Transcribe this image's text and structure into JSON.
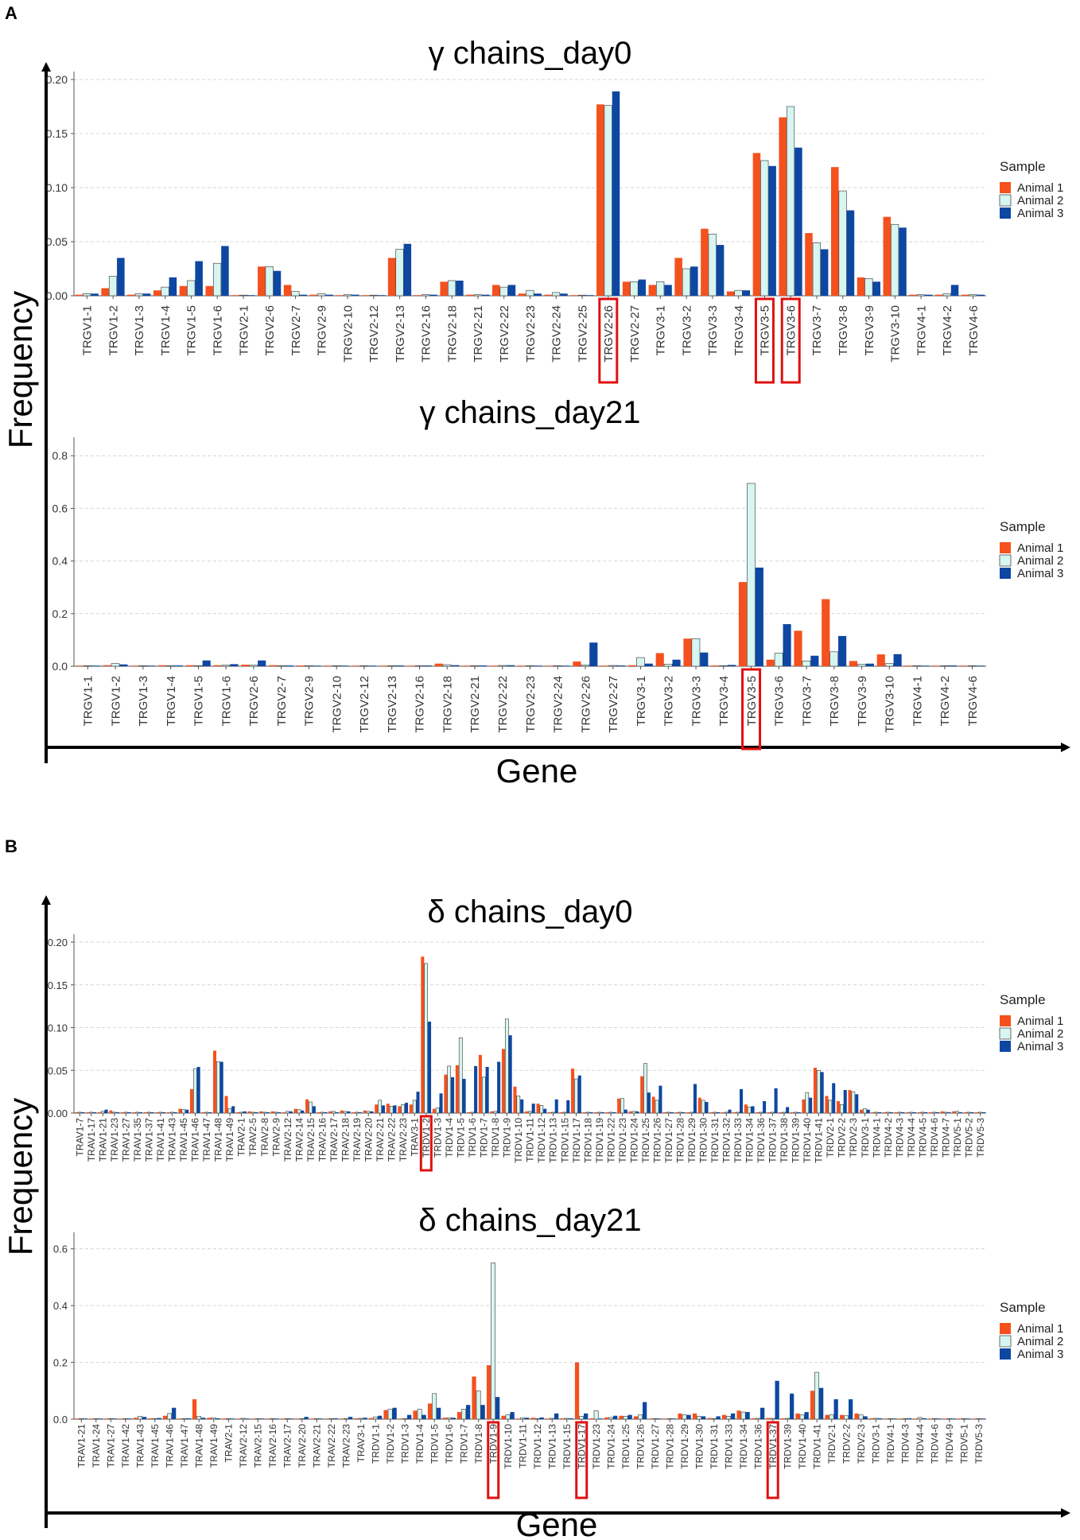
{
  "panels": [
    {
      "letter": "A",
      "xlabel": "Gene",
      "ylabel": "Frequency"
    },
    {
      "letter": "B",
      "xlabel": "Gene",
      "ylabel": "Frequency"
    }
  ],
  "legend": {
    "title": "Sample",
    "items": [
      "Animal 1",
      "Animal 2",
      "Animal 3"
    ]
  },
  "colors": {
    "Animal 1": "#F4511E",
    "Animal 2": "#D7F5F1",
    "Animal 3": "#0D47A1",
    "highlight": "#E01010"
  },
  "chart_data": [
    {
      "type": "bar",
      "title": "γ chains_day0",
      "xlabel": "Gene",
      "ylabel": "Frequency",
      "ylim": [
        0,
        0.2
      ],
      "yticks": [
        "0.00",
        "0.05",
        "0.10",
        "0.15",
        "0.20"
      ],
      "highlighted": [
        "TRGV2-26",
        "TRGV3-5",
        "TRGV3-6"
      ],
      "categories": [
        "TRGV1-1",
        "TRGV1-2",
        "TRGV1-3",
        "TRGV1-4",
        "TRGV1-5",
        "TRGV1-6",
        "TRGV2-1",
        "TRGV2-6",
        "TRGV2-7",
        "TRGV2-9",
        "TRGV2-10",
        "TRGV2-12",
        "TRGV2-13",
        "TRGV2-16",
        "TRGV2-18",
        "TRGV2-21",
        "TRGV2-22",
        "TRGV2-23",
        "TRGV2-24",
        "TRGV2-25",
        "TRGV2-26",
        "TRGV2-27",
        "TRGV3-1",
        "TRGV3-2",
        "TRGV3-3",
        "TRGV3-4",
        "TRGV3-5",
        "TRGV3-6",
        "TRGV3-7",
        "TRGV3-8",
        "TRGV3-9",
        "TRGV3-10",
        "TRGV4-1",
        "TRGV4-2",
        "TRGV4-6"
      ],
      "series": [
        {
          "name": "Animal 1",
          "values": [
            0.001,
            0.007,
            0.001,
            0.005,
            0.009,
            0.009,
            0,
            0.027,
            0.01,
            0.001,
            0,
            0,
            0.035,
            0,
            0.013,
            0.001,
            0.01,
            0.002,
            0.001,
            0,
            0.177,
            0.013,
            0.01,
            0.035,
            0.062,
            0.004,
            0.132,
            0.165,
            0.058,
            0.119,
            0.017,
            0.073,
            0.001,
            0.001,
            0.001
          ]
        },
        {
          "name": "Animal 2",
          "values": [
            0.002,
            0.018,
            0.002,
            0.008,
            0.014,
            0.03,
            0,
            0.027,
            0.004,
            0.002,
            0.001,
            0,
            0.043,
            0.001,
            0.014,
            0.001,
            0.008,
            0.005,
            0.003,
            0,
            0.176,
            0.013,
            0.013,
            0.025,
            0.057,
            0.005,
            0.125,
            0.175,
            0.049,
            0.097,
            0.016,
            0.066,
            0.001,
            0.002,
            0.001
          ]
        },
        {
          "name": "Animal 3",
          "values": [
            0.002,
            0.035,
            0.002,
            0.017,
            0.032,
            0.046,
            0,
            0.023,
            0.001,
            0.001,
            0.001,
            0,
            0.048,
            0.001,
            0.014,
            0.001,
            0.01,
            0.002,
            0.002,
            0,
            0.189,
            0.015,
            0.01,
            0.027,
            0.047,
            0.005,
            0.12,
            0.137,
            0.043,
            0.079,
            0.013,
            0.063,
            0.001,
            0.01,
            0.001
          ]
        }
      ]
    },
    {
      "type": "bar",
      "title": "γ chains_day21",
      "xlabel": "Gene",
      "ylabel": "Frequency",
      "ylim": [
        0,
        0.84
      ],
      "yticks": [
        "0.0",
        "0.2",
        "0.4",
        "0.6",
        "0.8"
      ],
      "highlighted": [
        "TRGV3-5"
      ],
      "categories": [
        "TRGV1-1",
        "TRGV1-2",
        "TRGV1-3",
        "TRGV1-4",
        "TRGV1-5",
        "TRGV1-6",
        "TRGV2-6",
        "TRGV2-7",
        "TRGV2-9",
        "TRGV2-10",
        "TRGV2-12",
        "TRGV2-13",
        "TRGV2-16",
        "TRGV2-18",
        "TRGV2-21",
        "TRGV2-22",
        "TRGV2-23",
        "TRGV2-24",
        "TRGV2-26",
        "TRGV2-27",
        "TRGV3-1",
        "TRGV3-2",
        "TRGV3-3",
        "TRGV3-4",
        "TRGV3-5",
        "TRGV3-6",
        "TRGV3-7",
        "TRGV3-8",
        "TRGV3-9",
        "TRGV3-10",
        "TRGV4-1",
        "TRGV4-2",
        "TRGV4-6"
      ],
      "series": [
        {
          "name": "Animal 1",
          "values": [
            0.002,
            0.004,
            0.001,
            0.004,
            0.004,
            0.004,
            0.006,
            0.004,
            0.003,
            0.001,
            0.001,
            0.002,
            0.002,
            0.01,
            0.002,
            0.002,
            0.001,
            0.001,
            0.018,
            0.002,
            0.004,
            0.05,
            0.105,
            0.003,
            0.32,
            0.025,
            0.135,
            0.255,
            0.02,
            0.045,
            0.002,
            0.001,
            0.001
          ]
        },
        {
          "name": "Animal 2",
          "values": [
            0.002,
            0.01,
            0.001,
            0.002,
            0.002,
            0.004,
            0.004,
            0.002,
            0.001,
            0.001,
            0.001,
            0.002,
            0.002,
            0.006,
            0.002,
            0.003,
            0.001,
            0.001,
            0.005,
            0.003,
            0.033,
            0.008,
            0.105,
            0.002,
            0.695,
            0.05,
            0.02,
            0.055,
            0.008,
            0.01,
            0.001,
            0.001,
            0.001
          ]
        },
        {
          "name": "Animal 3",
          "values": [
            0.002,
            0.007,
            0.001,
            0.003,
            0.022,
            0.008,
            0.022,
            0.003,
            0.002,
            0.001,
            0.001,
            0.003,
            0.003,
            0.004,
            0.003,
            0.004,
            0.001,
            0.002,
            0.09,
            0.003,
            0.01,
            0.025,
            0.052,
            0.005,
            0.375,
            0.16,
            0.04,
            0.115,
            0.01,
            0.046,
            0.001,
            0.003,
            0.002
          ]
        }
      ]
    },
    {
      "type": "bar",
      "title": "δ chains_day0",
      "xlabel": "Gene",
      "ylabel": "Frequency",
      "ylim": [
        0,
        0.2
      ],
      "yticks": [
        "0.00",
        "0.05",
        "0.10",
        "0.15",
        "0.20"
      ],
      "highlighted": [
        "TRDV1-2"
      ],
      "categories": [
        "TRAV1-7",
        "TRAV1-17",
        "TRAV1-21",
        "TRAV1-23",
        "TRAV1-27",
        "TRAV1-35",
        "TRAV1-37",
        "TRAV1-41",
        "TRAV1-43",
        "TRAV1-45",
        "TRAV1-46",
        "TRAV1-47",
        "TRAV1-48",
        "TRAV1-49",
        "TRAV2-1",
        "TRAV2-5",
        "TRAV2-8",
        "TRAV2-9",
        "TRAV2-12",
        "TRAV2-14",
        "TRAV2-15",
        "TRAV2-16",
        "TRAV2-17",
        "TRAV2-18",
        "TRAV2-19",
        "TRAV2-20",
        "TRAV2-21",
        "TRAV2-22",
        "TRAV2-23",
        "TRAV3-1",
        "TRDV1-2",
        "TRDV1-3",
        "TRDV1-4",
        "TRDV1-5",
        "TRDV1-6",
        "TRDV1-7",
        "TRDV1-8",
        "TRDV1-9",
        "TRDV1-10",
        "TRDV1-11",
        "TRDV1-12",
        "TRDV1-13",
        "TRDV1-15",
        "TRDV1-17",
        "TRDV1-18",
        "TRDV1-19",
        "TRDV1-22",
        "TRDV1-23",
        "TRDV1-24",
        "TRDV1-25",
        "TRDV1-26",
        "TRDV1-27",
        "TRDV1-28",
        "TRDV1-29",
        "TRDV1-30",
        "TRDV1-31",
        "TRDV1-32",
        "TRDV1-33",
        "TRDV1-34",
        "TRDV1-36",
        "TRDV1-37",
        "TRDV1-38",
        "TRDV1-39",
        "TRDV1-40",
        "TRDV1-41",
        "TRDV2-1",
        "TRDV2-2",
        "TRDV2-3",
        "TRDV3-1",
        "TRDV4-1",
        "TRDV4-2",
        "TRDV4-3",
        "TRDV4-4",
        "TRDV4-5",
        "TRDV4-6",
        "TRDV4-7",
        "TRDV5-1",
        "TRDV5-2",
        "TRDV5-3"
      ],
      "series": [
        {
          "name": "Animal 1",
          "values": [
            0.001,
            0.001,
            0.001,
            0.003,
            0.001,
            0.001,
            0.001,
            0.001,
            0.001,
            0.005,
            0.028,
            0.001,
            0.073,
            0.02,
            0.001,
            0.002,
            0.002,
            0.002,
            0.001,
            0.005,
            0.016,
            0.001,
            0.002,
            0.003,
            0.001,
            0.003,
            0.01,
            0.011,
            0.008,
            0.01,
            0.183,
            0.005,
            0.045,
            0.056,
            0.001,
            0.068,
            0.002,
            0.075,
            0.031,
            0.002,
            0.011,
            0.001,
            0.001,
            0.052,
            0.001,
            0.001,
            0.001,
            0.017,
            0.002,
            0.043,
            0.019,
            0.001,
            0.001,
            0.001,
            0.018,
            0.001,
            0.001,
            0.001,
            0.01,
            0.001,
            0.001,
            0.001,
            0.001,
            0.016,
            0.053,
            0.02,
            0.014,
            0.027,
            0.004,
            0.001,
            0.001,
            0.001,
            0.001,
            0.001,
            0.001,
            0.002,
            0.002,
            0.001,
            0.001
          ]
        },
        {
          "name": "Animal 2",
          "values": [
            0.001,
            0.001,
            0.002,
            0.001,
            0.001,
            0.001,
            0.001,
            0.001,
            0.001,
            0.004,
            0.052,
            0.001,
            0.06,
            0.005,
            0.001,
            0.001,
            0.001,
            0.001,
            0.002,
            0.004,
            0.013,
            0.001,
            0.002,
            0.002,
            0.001,
            0.002,
            0.015,
            0.008,
            0.01,
            0.015,
            0.175,
            0.006,
            0.055,
            0.088,
            0.001,
            0.042,
            0.002,
            0.11,
            0.02,
            0.002,
            0.009,
            0.001,
            0.001,
            0.04,
            0.001,
            0.001,
            0.001,
            0.017,
            0.002,
            0.058,
            0.015,
            0.001,
            0.001,
            0.001,
            0.015,
            0.001,
            0.001,
            0.001,
            0.007,
            0.001,
            0.001,
            0.001,
            0.001,
            0.024,
            0.05,
            0.015,
            0.01,
            0.025,
            0.005,
            0.001,
            0.001,
            0.001,
            0.001,
            0.001,
            0.001,
            0.001,
            0.002,
            0.001,
            0.001
          ]
        },
        {
          "name": "Animal 3",
          "values": [
            0.001,
            0.001,
            0.004,
            0.001,
            0.001,
            0.001,
            0.001,
            0.001,
            0.001,
            0.004,
            0.054,
            0.001,
            0.06,
            0.008,
            0.002,
            0.001,
            0.001,
            0.001,
            0.002,
            0.003,
            0.008,
            0.001,
            0.001,
            0.002,
            0.001,
            0.002,
            0.009,
            0.009,
            0.012,
            0.025,
            0.107,
            0.023,
            0.042,
            0.04,
            0.055,
            0.054,
            0.06,
            0.091,
            0.016,
            0.011,
            0.005,
            0.016,
            0.015,
            0.044,
            0.001,
            0.001,
            0.001,
            0.004,
            0.002,
            0.024,
            0.032,
            0.001,
            0.001,
            0.034,
            0.013,
            0.001,
            0.004,
            0.028,
            0.008,
            0.014,
            0.029,
            0.007,
            0.001,
            0.018,
            0.048,
            0.035,
            0.027,
            0.022,
            0.004,
            0.001,
            0.001,
            0.001,
            0.001,
            0.001,
            0.001,
            0.001,
            0.001,
            0.001,
            0.001
          ]
        }
      ]
    },
    {
      "type": "bar",
      "title": "δ chains_day21",
      "xlabel": "Gene",
      "ylabel": "Frequency",
      "ylim": [
        0,
        0.63
      ],
      "yticks": [
        "0.0",
        "0.2",
        "0.4",
        "0.6"
      ],
      "highlighted": [
        "TRDV1-9",
        "TRDV1-17",
        "TRDV1-37"
      ],
      "categories": [
        "TRAV1-21",
        "TRAV1-24",
        "TRAV1-27",
        "TRAV1-42",
        "TRAV1-43",
        "TRAV1-45",
        "TRAV1-46",
        "TRAV1-47",
        "TRAV1-48",
        "TRAV1-49",
        "TRAV2-1",
        "TRAV2-12",
        "TRAV2-15",
        "TRAV2-16",
        "TRAV2-17",
        "TRAV2-20",
        "TRAV2-21",
        "TRAV2-22",
        "TRAV2-23",
        "TRAV3-1",
        "TRDV1-1",
        "TRDV1-2",
        "TRDV1-3",
        "TRDV1-4",
        "TRDV1-5",
        "TRDV1-6",
        "TRDV1-7",
        "TRDV1-8",
        "TRDV1-9",
        "TRDV1-10",
        "TRDV1-11",
        "TRDV1-12",
        "TRDV1-13",
        "TRDV1-15",
        "TRDV1-17",
        "TRDV1-23",
        "TRDV1-24",
        "TRDV1-25",
        "TRDV1-26",
        "TRDV1-27",
        "TRDV1-28",
        "TRDV1-29",
        "TRDV1-30",
        "TRDV1-31",
        "TRDV1-33",
        "TRDV1-34",
        "TRDV1-36",
        "TRDV1-37",
        "TRDV1-39",
        "TRDV1-40",
        "TRDV1-41",
        "TRDV2-1",
        "TRDV2-2",
        "TRDV2-3",
        "TRDV3-1",
        "TRDV4-1",
        "TRDV4-3",
        "TRDV4-4",
        "TRDV4-6",
        "TRDV4-9",
        "TRDV5-1",
        "TRDV5-3"
      ],
      "series": [
        {
          "name": "Animal 1",
          "values": [
            0.001,
            0.002,
            0.001,
            0.001,
            0.005,
            0.003,
            0.012,
            0.001,
            0.07,
            0.005,
            0.001,
            0.002,
            0.002,
            0.001,
            0.002,
            0.002,
            0.001,
            0.002,
            0.001,
            0.003,
            0.004,
            0.032,
            0.002,
            0.03,
            0.055,
            0.005,
            0.025,
            0.15,
            0.19,
            0.012,
            0.002,
            0.005,
            0.002,
            0.003,
            0.2,
            0.003,
            0.006,
            0.012,
            0.01,
            0.002,
            0.002,
            0.02,
            0.02,
            0.004,
            0.015,
            0.03,
            0.003,
            0.004,
            0.003,
            0.02,
            0.1,
            0.015,
            0.015,
            0.02,
            0.003,
            0.001,
            0.001,
            0.002,
            0.001,
            0.001,
            0.001,
            0.001
          ]
        },
        {
          "name": "Animal 2",
          "values": [
            0.001,
            0.001,
            0.001,
            0.001,
            0.01,
            0.002,
            0.02,
            0.001,
            0.01,
            0.005,
            0.001,
            0.003,
            0.002,
            0.001,
            0.002,
            0.002,
            0.001,
            0.002,
            0.002,
            0.003,
            0.008,
            0.035,
            0.002,
            0.035,
            0.09,
            0.005,
            0.035,
            0.1,
            0.55,
            0.015,
            0.005,
            0.002,
            0.003,
            0.003,
            0.01,
            0.03,
            0.006,
            0.01,
            0.015,
            0.002,
            0.002,
            0.015,
            0.01,
            0.002,
            0.01,
            0.025,
            0.003,
            0.003,
            0.003,
            0.015,
            0.165,
            0.015,
            0.012,
            0.015,
            0.003,
            0.002,
            0.001,
            0.006,
            0.001,
            0.002,
            0.001,
            0.001
          ]
        },
        {
          "name": "Animal 3",
          "values": [
            0.002,
            0.001,
            0.001,
            0.001,
            0.008,
            0.004,
            0.04,
            0.003,
            0.005,
            0.003,
            0.002,
            0.002,
            0.001,
            0.001,
            0.001,
            0.008,
            0.002,
            0.003,
            0.008,
            0.005,
            0.012,
            0.04,
            0.015,
            0.015,
            0.04,
            0.005,
            0.05,
            0.05,
            0.078,
            0.025,
            0.005,
            0.006,
            0.02,
            0.003,
            0.02,
            0.002,
            0.012,
            0.015,
            0.06,
            0.002,
            0.002,
            0.015,
            0.01,
            0.01,
            0.02,
            0.025,
            0.04,
            0.135,
            0.09,
            0.025,
            0.11,
            0.07,
            0.07,
            0.01,
            0.003,
            0.002,
            0.003,
            0.003,
            0.002,
            0.002,
            0.001,
            0.001
          ]
        }
      ]
    }
  ]
}
